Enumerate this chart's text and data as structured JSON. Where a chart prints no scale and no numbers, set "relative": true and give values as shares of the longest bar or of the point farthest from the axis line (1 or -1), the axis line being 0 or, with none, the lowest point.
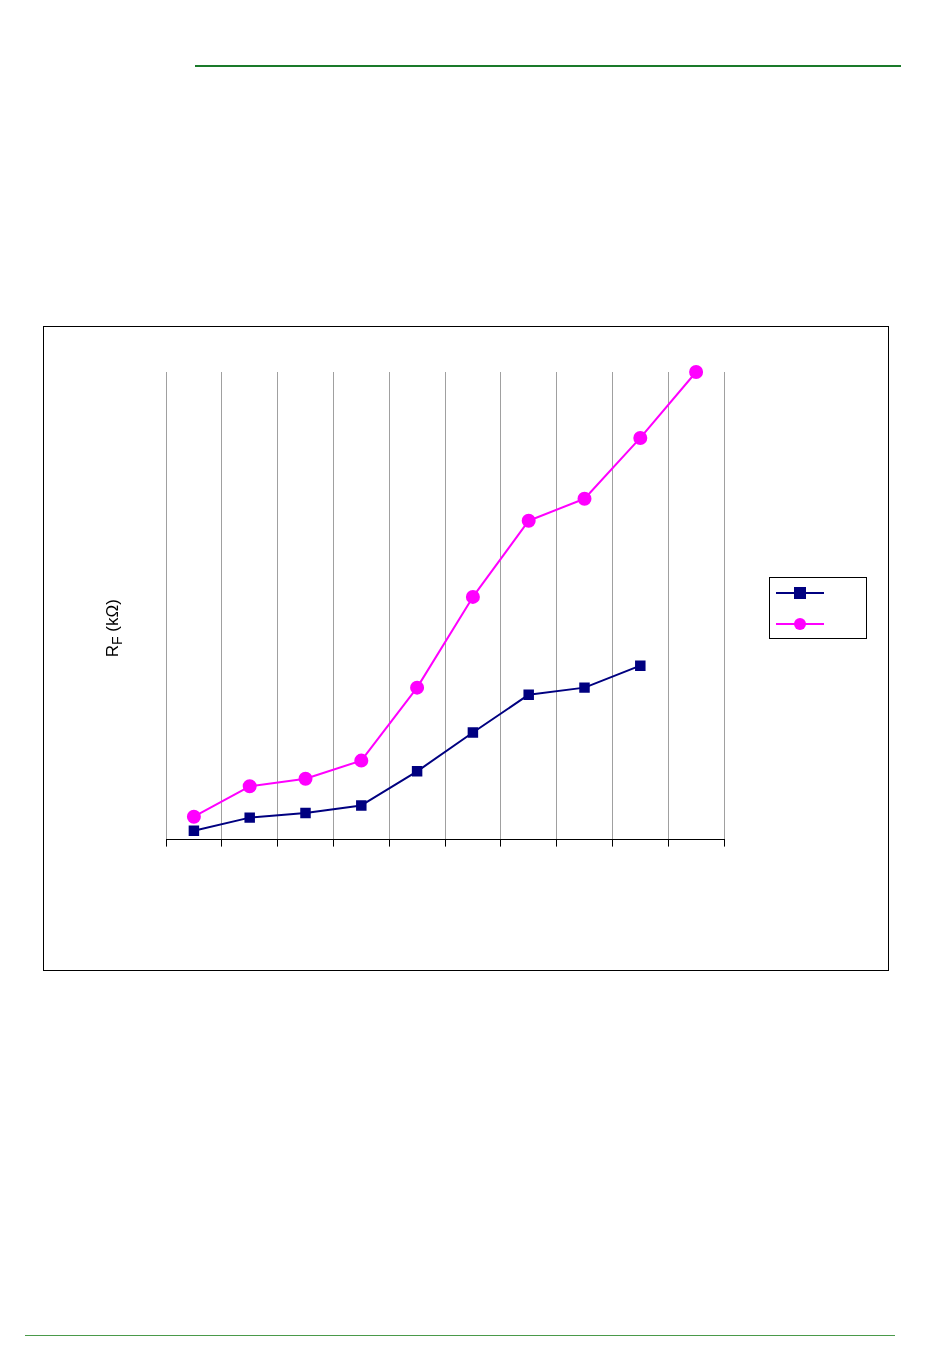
{
  "chart_data": {
    "type": "line",
    "ylabel": "R$_{F}$ (kΩ)",
    "relative": true,
    "grid": "x",
    "legend": false,
    "categories": [
      null,
      null,
      null,
      null,
      null,
      null,
      null,
      null,
      null,
      null
    ],
    "series": [
      {
        "color": "#000080",
        "marker": "square",
        "values": [
          0.019,
          0.047,
          0.057,
          0.073,
          0.146,
          0.229,
          0.31,
          0.325,
          0.372,
          null
        ]
      },
      {
        "color": "#ff00ff",
        "marker": "circle",
        "values": [
          0.049,
          0.114,
          0.13,
          0.169,
          0.325,
          0.519,
          0.682,
          0.729,
          0.859,
          1
        ]
      }
    ]
  }
}
